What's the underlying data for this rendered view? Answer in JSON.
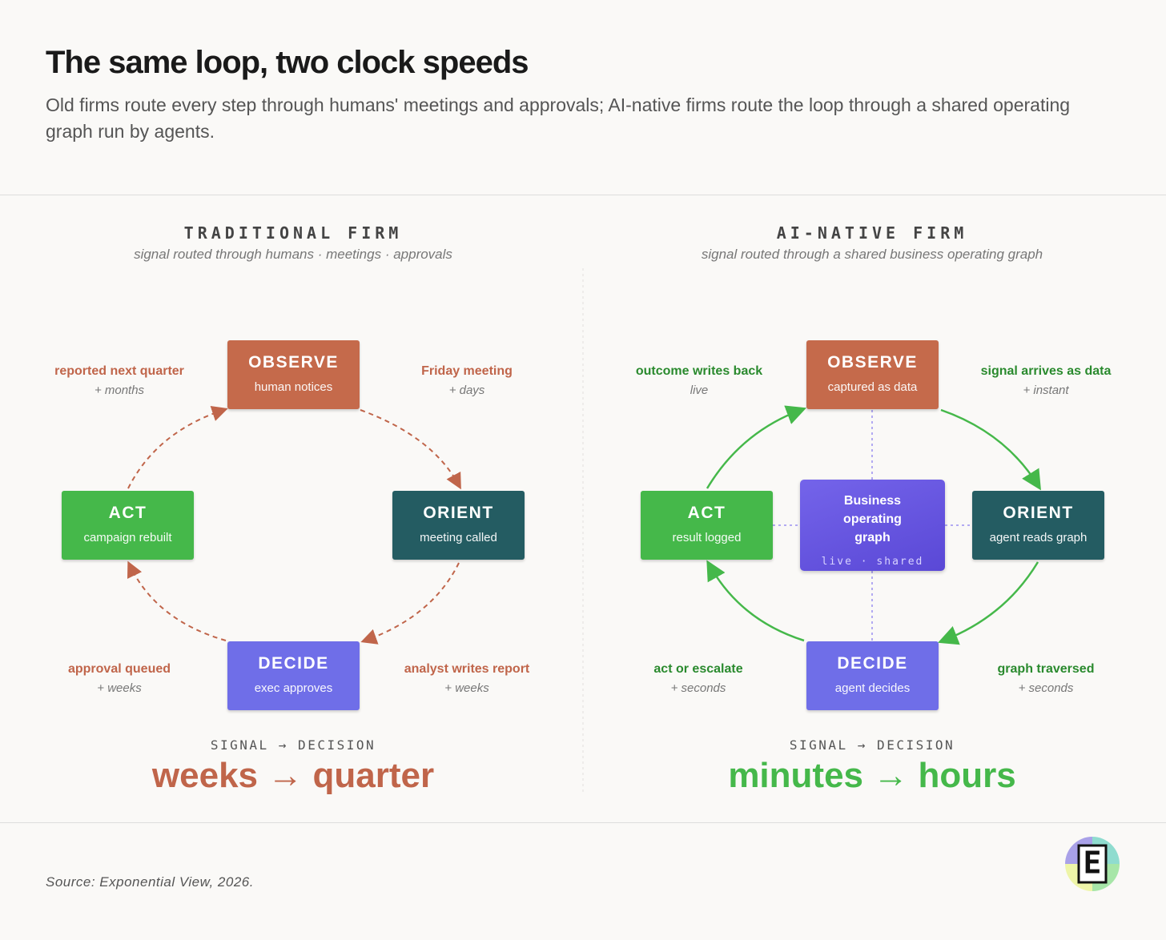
{
  "header": {
    "title": "The same loop, two clock speeds",
    "subtitle": "Old firms route every step through humans' meetings and approvals; AI-native firms route the loop through a shared operating graph run by agents."
  },
  "panels": [
    {
      "title": "TRADITIONAL FIRM",
      "subtitle": "signal routed through humans · meetings · approvals",
      "nodes": [
        {
          "label": "OBSERVE",
          "detail": "human notices"
        },
        {
          "label": "ORIENT",
          "detail": "meeting called"
        },
        {
          "label": "DECIDE",
          "detail": "exec approves"
        },
        {
          "label": "ACT",
          "detail": "campaign rebuilt"
        }
      ],
      "edges": [
        {
          "label": "Friday meeting",
          "delay": "+ days"
        },
        {
          "label": "analyst writes report",
          "delay": "+ weeks"
        },
        {
          "label": "approval queued",
          "delay": "+ weeks"
        },
        {
          "label": "reported next quarter",
          "delay": "+ months"
        }
      ],
      "footer_label": "SIGNAL → DECISION",
      "result": "weeks → quarter"
    },
    {
      "title": "AI-NATIVE FIRM",
      "subtitle": "signal routed through a shared business operating graph",
      "nodes": [
        {
          "label": "OBSERVE",
          "detail": "captured as data"
        },
        {
          "label": "ORIENT",
          "detail": "agent reads graph"
        },
        {
          "label": "DECIDE",
          "detail": "agent decides"
        },
        {
          "label": "ACT",
          "detail": "result logged"
        }
      ],
      "center": {
        "title": "Business operating graph",
        "tag": "live · shared"
      },
      "edges": [
        {
          "label": "signal arrives as data",
          "delay": "+ instant"
        },
        {
          "label": "graph traversed",
          "delay": "+ seconds"
        },
        {
          "label": "act or escalate",
          "delay": "+ seconds"
        },
        {
          "label": "outcome writes back",
          "delay": "live"
        }
      ],
      "footer_label": "SIGNAL → DECISION",
      "result": "minutes → hours"
    }
  ],
  "source": "Source: Exponential View, 2026.",
  "logo": "E"
}
